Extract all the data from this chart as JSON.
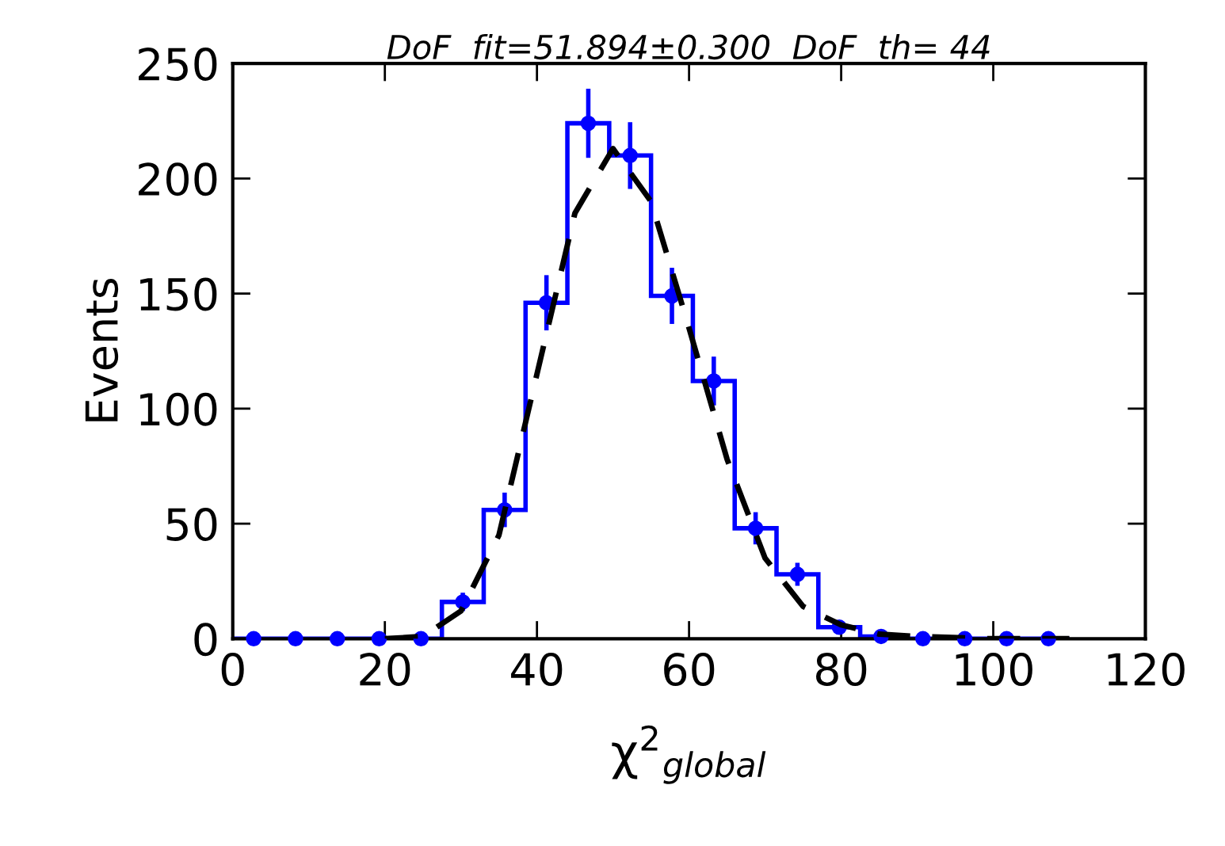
{
  "chart_data": {
    "type": "histogram",
    "title": "DoF  fit=51.894±0.300  DoF  th= 44",
    "xlabel": "χ$^{2}$$_{global}$",
    "ylabel": "Events",
    "xlim": [
      0,
      120
    ],
    "xticks": [
      0,
      20,
      40,
      60,
      80,
      100,
      120
    ],
    "ylim": [
      0,
      250
    ],
    "yticks": [
      0,
      50,
      100,
      150,
      200,
      250
    ],
    "grid": false,
    "series": [
      {
        "color": "#0000ff",
        "bins": [
          0,
          5.5,
          11,
          16.5,
          22,
          27.5,
          33,
          38.5,
          44,
          49.5,
          55,
          60.5,
          66,
          71.5,
          77,
          82.5,
          88,
          93.5,
          99,
          104.5,
          110
        ],
        "values": [
          0,
          0,
          0,
          0,
          0,
          16,
          56,
          146,
          224,
          210,
          149,
          112,
          48,
          28,
          5,
          1,
          0,
          0,
          0,
          0
        ]
      },
      {
        "type": "scatter",
        "color": "#0000ff",
        "marker": "circle",
        "x": [
          2.75,
          8.25,
          13.75,
          19.25,
          24.75,
          30.25,
          35.75,
          41.25,
          46.75,
          52.25,
          57.75,
          63.25,
          68.75,
          74.25,
          79.75,
          85.25,
          90.75,
          96.25,
          101.75,
          107.25
        ],
        "values": [
          0,
          0,
          0,
          0,
          0,
          16,
          56,
          146,
          224,
          210,
          149,
          112,
          48,
          28,
          5,
          1,
          0,
          0,
          0,
          0
        ],
        "errors": [
          null,
          null,
          null,
          null,
          null,
          4,
          7.5,
          12,
          15,
          14.5,
          12.2,
          10.6,
          7,
          5,
          2.2,
          1,
          null,
          null,
          null,
          null
        ]
      },
      {
        "type": "line",
        "color": "#000000",
        "line_style": "dashed",
        "x": [
          20,
          25,
          30,
          35,
          40,
          45,
          50,
          55,
          60,
          65,
          70,
          75,
          80,
          85,
          90,
          100,
          110
        ],
        "values": [
          0,
          1,
          12,
          45,
          115,
          185,
          213,
          190,
          135,
          78,
          35,
          14,
          6,
          2,
          1,
          0,
          0
        ]
      }
    ]
  }
}
